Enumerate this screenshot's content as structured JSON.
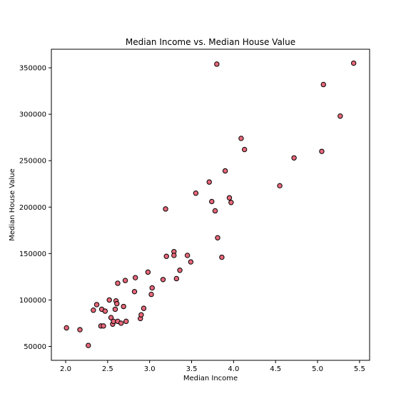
{
  "chart_data": {
    "type": "scatter",
    "title": "Median Income vs. Median House Value",
    "xlabel": "Median Income",
    "ylabel": "Median House Value",
    "xlim": [
      1.83,
      5.62
    ],
    "ylim": [
      35000,
      370000
    ],
    "xticks": [
      2.0,
      2.5,
      3.0,
      3.5,
      4.0,
      4.5,
      5.0,
      5.5
    ],
    "xtick_labels": [
      "2.0",
      "2.5",
      "3.0",
      "3.5",
      "4.0",
      "4.5",
      "5.0",
      "5.5"
    ],
    "yticks": [
      50000,
      100000,
      150000,
      200000,
      250000,
      300000,
      350000
    ],
    "ytick_labels": [
      "50000",
      "100000",
      "150000",
      "200000",
      "250000",
      "300000",
      "350000"
    ],
    "grid": false,
    "marker_color": "#e8687a",
    "marker_edge": "#000000",
    "series": [
      {
        "x": [
          2.01,
          2.17,
          2.27,
          2.33,
          2.37,
          2.42,
          2.43,
          2.45,
          2.47,
          2.52,
          2.54,
          2.56,
          2.57,
          2.59,
          2.6,
          2.61,
          2.62,
          2.62,
          2.66,
          2.69,
          2.71,
          2.72,
          2.82,
          2.83,
          2.89,
          2.9,
          2.93,
          2.98,
          3.02,
          3.03,
          3.16,
          3.19,
          3.2,
          3.29,
          3.29,
          3.32,
          3.36,
          3.45,
          3.49,
          3.55,
          3.71,
          3.74,
          3.78,
          3.8,
          3.81,
          3.86,
          3.9,
          3.95,
          3.97,
          4.09,
          4.13,
          4.55,
          4.72,
          5.05,
          5.07,
          5.27,
          5.43
        ],
        "y": [
          70000,
          68000,
          51000,
          89000,
          95000,
          72000,
          90000,
          72000,
          88000,
          100000,
          81000,
          74000,
          77000,
          90000,
          99000,
          96000,
          118000,
          77000,
          75000,
          93000,
          121000,
          77000,
          109000,
          124000,
          80000,
          84000,
          91000,
          130000,
          106000,
          113000,
          122000,
          198000,
          147000,
          152000,
          148000,
          123000,
          132000,
          148000,
          141000,
          215000,
          227000,
          206000,
          196000,
          354000,
          167000,
          146000,
          239000,
          210000,
          205000,
          274000,
          262000,
          223000,
          253000,
          260000,
          332000,
          298000,
          355000
        ]
      }
    ]
  }
}
